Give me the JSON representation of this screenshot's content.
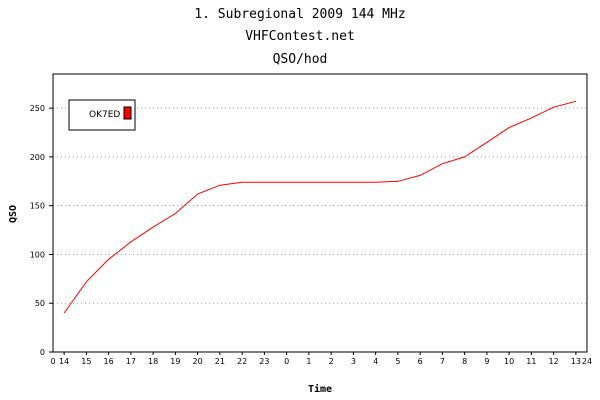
{
  "chart_data": {
    "type": "line",
    "title_lines": [
      "1. Subregional 2009  144 MHz",
      "VHFContest.net",
      "QSO/hod"
    ],
    "xlabel": "Time",
    "ylabel": "QSO",
    "x_tick_labels": [
      "0",
      "14",
      "15",
      "16",
      "17",
      "18",
      "19",
      "20",
      "21",
      "22",
      "23",
      "0",
      "1",
      "2",
      "3",
      "4",
      "5",
      "6",
      "7",
      "8",
      "9",
      "10",
      "11",
      "12",
      "13",
      "24"
    ],
    "y_ticks": [
      0,
      50,
      100,
      150,
      200,
      250
    ],
    "ylim": [
      0,
      285
    ],
    "grid": "horizontal dotted",
    "legend": {
      "position": "top-left",
      "entries": [
        {
          "name": "OK7ED",
          "color": "#ff0000"
        }
      ]
    },
    "series": [
      {
        "name": "OK7ED",
        "color": "#ff0000",
        "x": [
          14,
          15,
          16,
          17,
          18,
          19,
          20,
          21,
          22,
          23,
          24,
          25,
          26,
          27,
          28,
          29,
          30,
          31,
          32,
          33,
          34,
          35,
          36,
          37
        ],
        "values": [
          40,
          72,
          95,
          113,
          128,
          142,
          162,
          171,
          174,
          174,
          174,
          174,
          174,
          174,
          174,
          175,
          181,
          193,
          200,
          215,
          230,
          240,
          251,
          257
        ]
      }
    ]
  }
}
